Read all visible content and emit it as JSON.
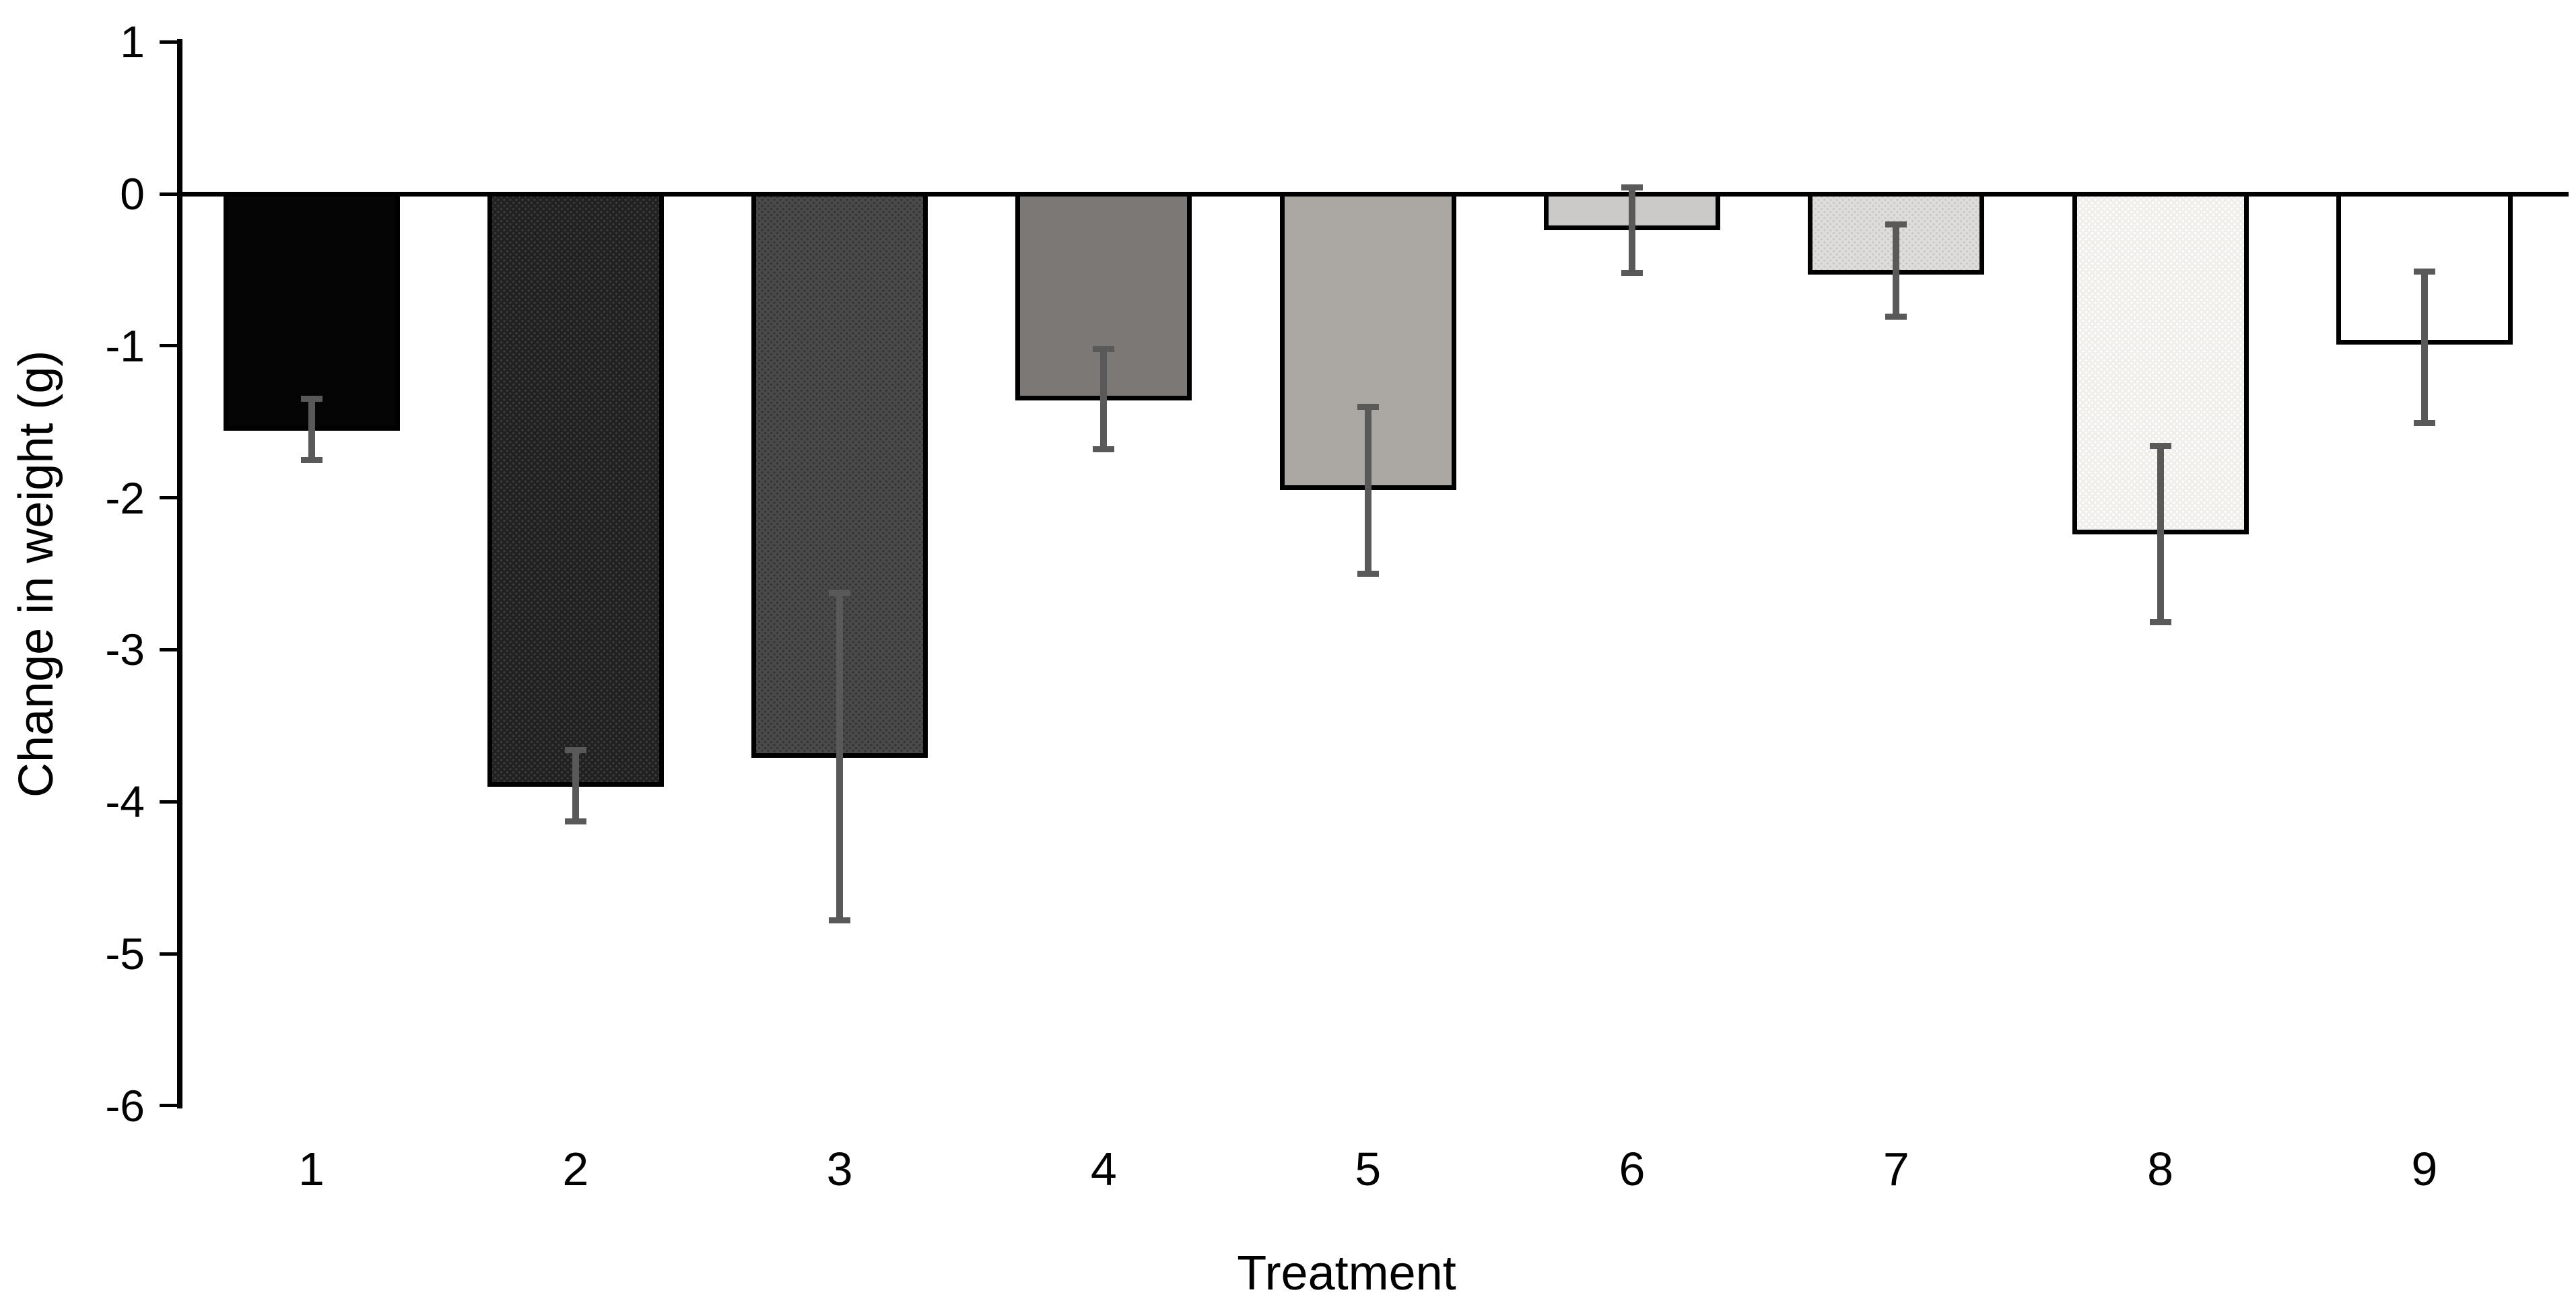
{
  "chart_data": {
    "type": "bar",
    "title": "",
    "xlabel": "Treatment",
    "ylabel": "Change in weight (g)",
    "categories": [
      "1",
      "2",
      "3",
      "4",
      "5",
      "6",
      "7",
      "8",
      "9"
    ],
    "values": [
      -1.56,
      -3.9,
      -3.71,
      -1.36,
      -1.95,
      -0.24,
      -0.53,
      -2.24,
      -0.99
    ],
    "error_high": [
      -1.35,
      -3.66,
      -2.63,
      -1.02,
      -1.4,
      0.04,
      -0.2,
      -1.66,
      -0.51
    ],
    "error_low": [
      -1.75,
      -4.13,
      -4.78,
      -1.68,
      -2.5,
      -0.52,
      -0.81,
      -2.82,
      -1.51
    ],
    "ylim": [
      -6,
      1
    ],
    "yticks": [
      1,
      0,
      -1,
      -2,
      -3,
      -4,
      -5,
      -6
    ],
    "ytick_labels": [
      "1",
      "0",
      "-1",
      "-2",
      "-3",
      "-4",
      "-5",
      "-6"
    ],
    "grid": false,
    "legend": "none",
    "axis_color": "#000000",
    "error_bar_color": "#595959",
    "bar_styles": [
      {
        "fill": "#050505",
        "dot": null
      },
      {
        "fill": "#212121",
        "dot": "#3c3c3c"
      },
      {
        "fill": "#4a4a4a",
        "dot": "#343434"
      },
      {
        "fill": "#7b7875",
        "dot": null
      },
      {
        "fill": "#aba7a2",
        "dot": null
      },
      {
        "fill": "#cbcac8",
        "dot": null
      },
      {
        "fill": "#dedddb",
        "dot": "#c9c8c6"
      },
      {
        "fill": "#f0efec",
        "dot": "#ffffff"
      },
      {
        "fill": "#ffffff",
        "dot": null
      }
    ]
  }
}
